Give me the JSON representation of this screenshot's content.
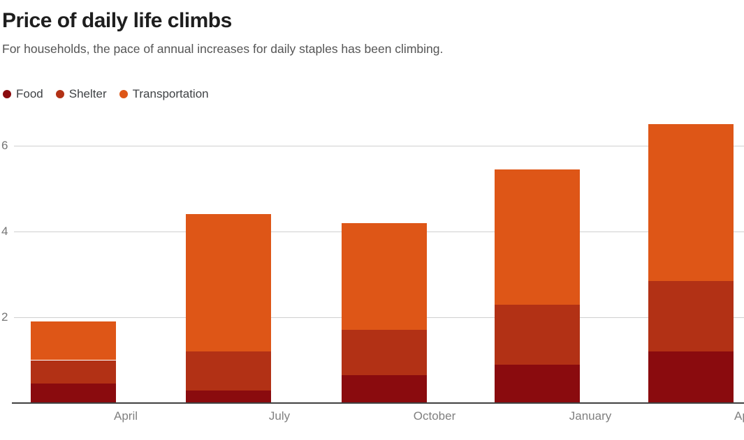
{
  "header": {
    "title": "Price of daily life climbs",
    "subtitle": "For households, the pace of annual increases for daily staples has been climbing."
  },
  "chart_data": {
    "type": "bar",
    "stacked": true,
    "title": "Price of daily life climbs",
    "subtitle": "For households, the pace of annual increases for daily staples has been climbing.",
    "categories": [
      "April",
      "July",
      "October",
      "January",
      "April"
    ],
    "series": [
      {
        "name": "Food",
        "color": "#8A0B0E",
        "values": [
          0.45,
          0.3,
          0.65,
          0.9,
          1.2
        ]
      },
      {
        "name": "Shelter",
        "color": "#B23115",
        "values": [
          0.55,
          0.9,
          1.05,
          1.4,
          1.65
        ]
      },
      {
        "name": "Transportation",
        "color": "#DE5617",
        "values": [
          0.9,
          3.2,
          2.5,
          3.15,
          3.65
        ]
      }
    ],
    "totals": [
      1.9,
      4.4,
      4.2,
      5.45,
      6.5
    ],
    "y_ticks": [
      2,
      4,
      6
    ],
    "ylim": [
      0,
      6.6
    ],
    "xlabel": "",
    "ylabel": "",
    "grid": "horizontal",
    "legend_position": "top-left",
    "last_x_label_visible_part": "Ap"
  }
}
